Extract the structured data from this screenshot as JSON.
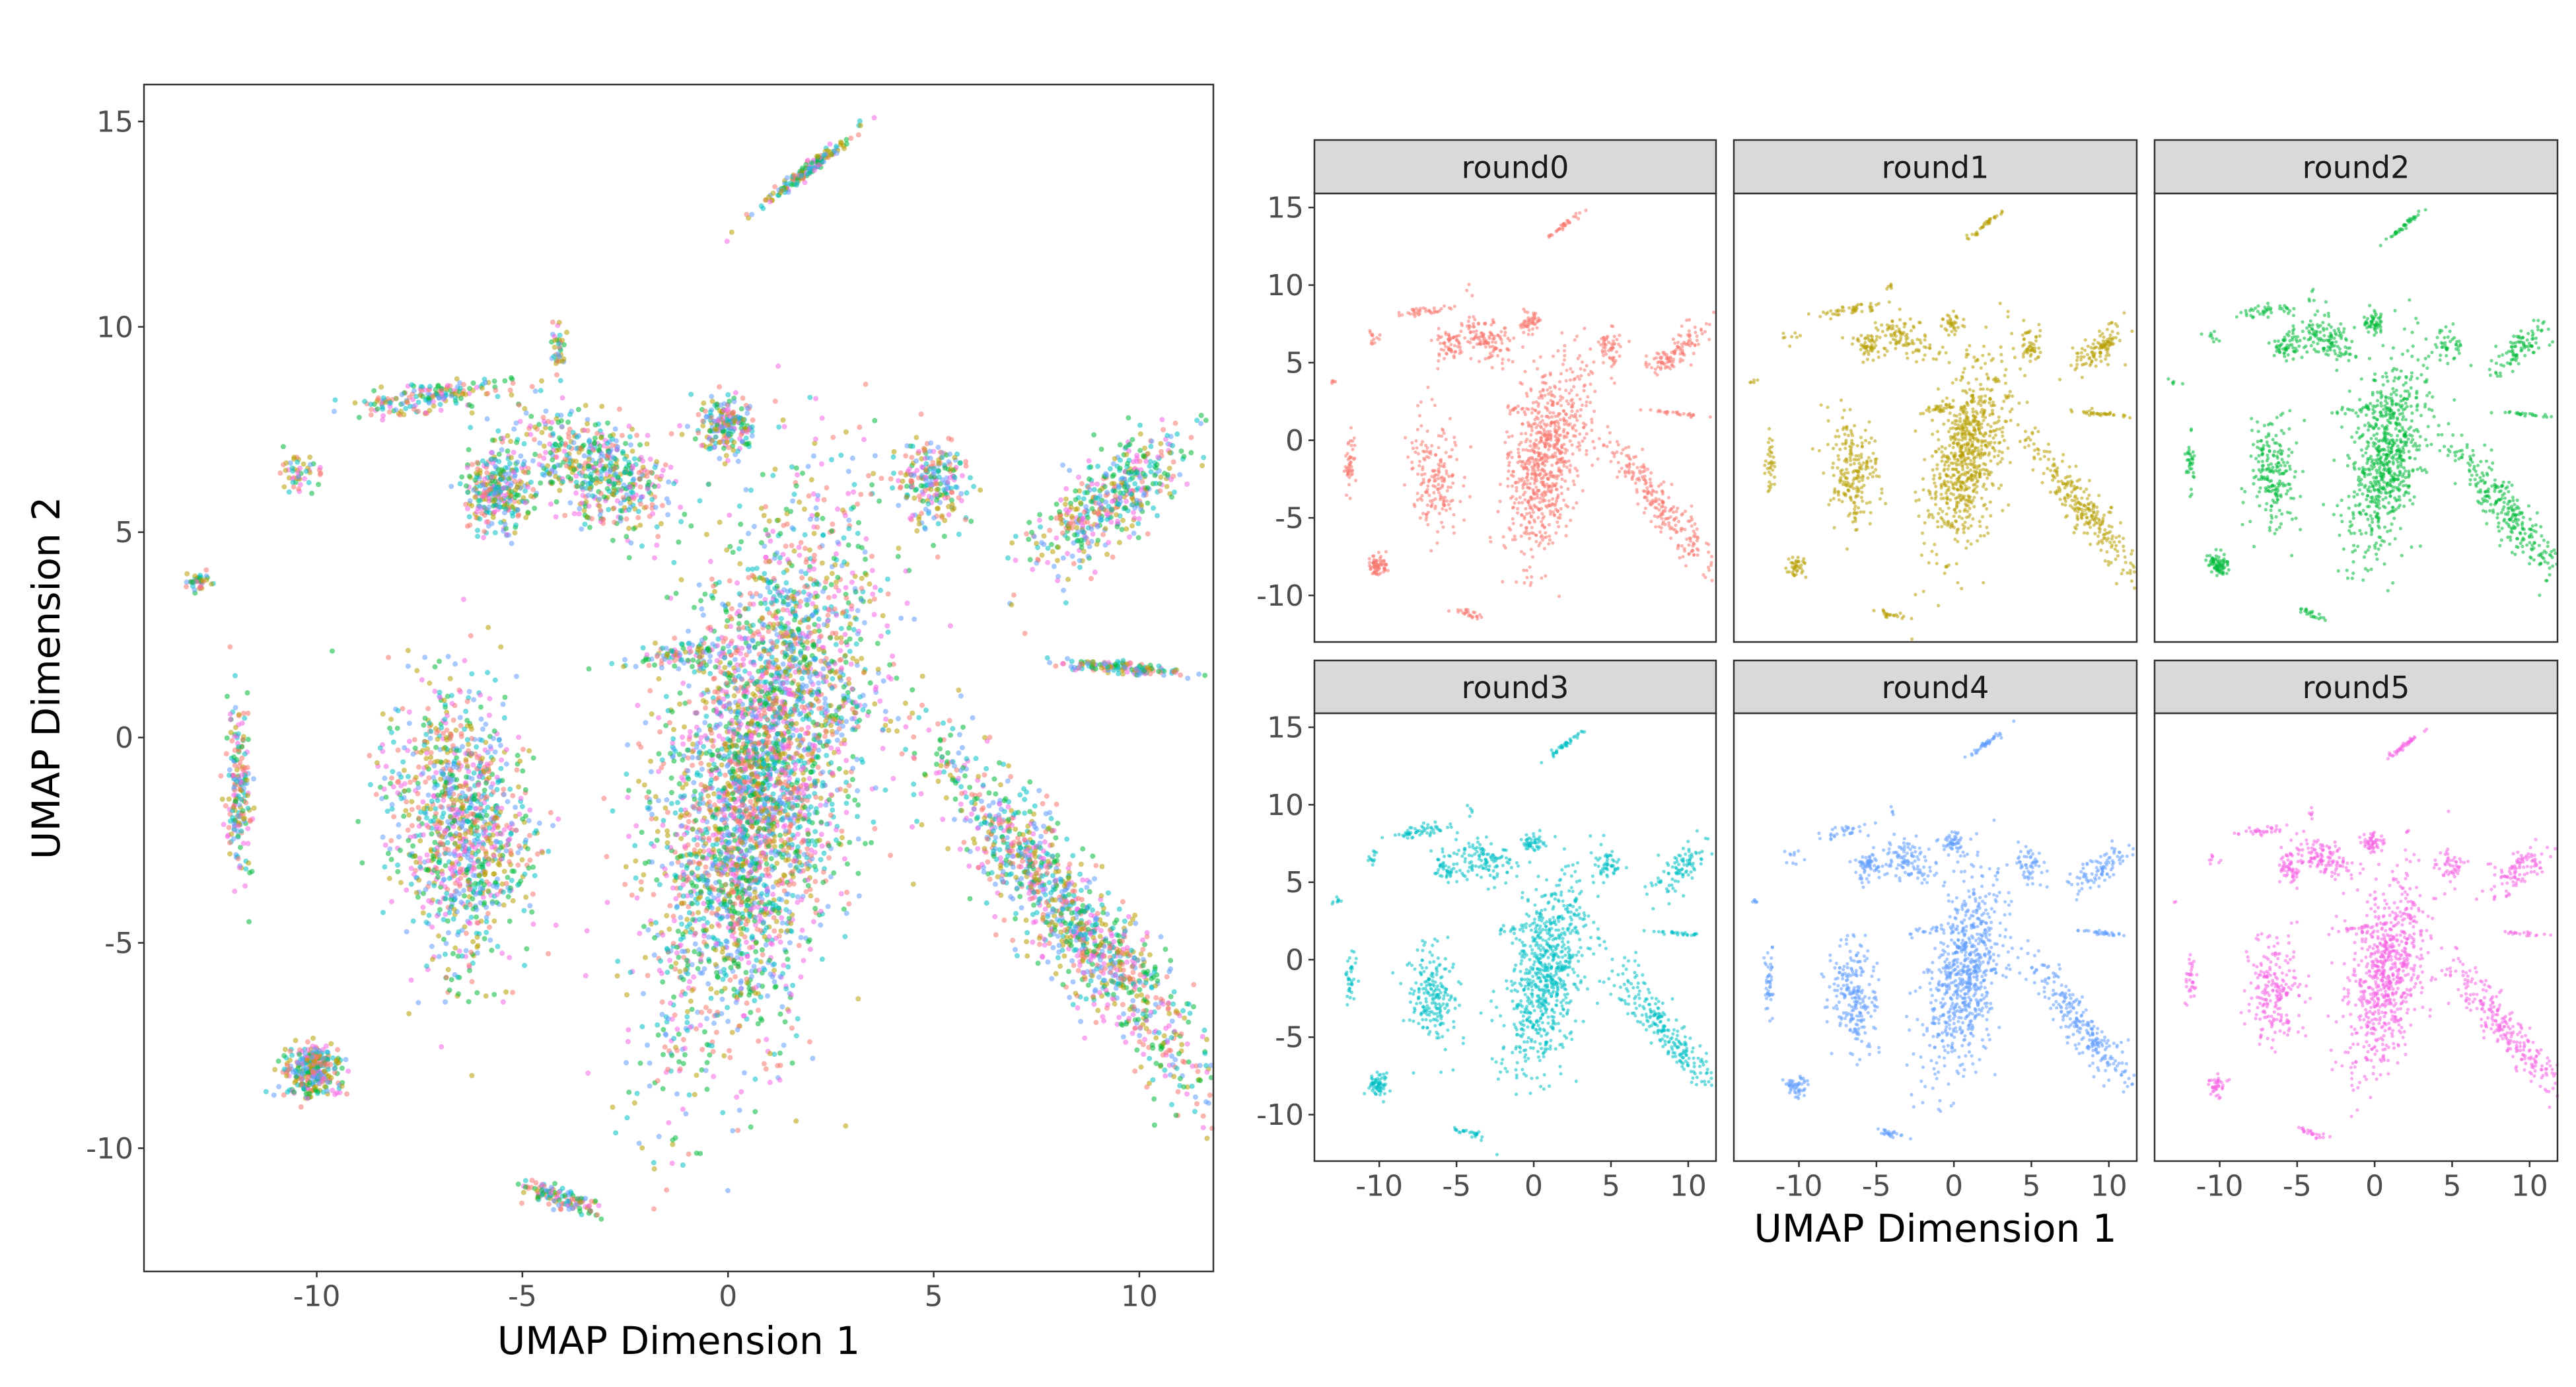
{
  "chart_data": [
    {
      "type": "scatter",
      "panel": "combined",
      "xlabel": "UMAP Dimension 1",
      "ylabel": "UMAP Dimension 2",
      "xlim": [
        -14.2,
        11.8
      ],
      "ylim": [
        -13.0,
        15.9
      ],
      "xticks": [
        -10,
        -5,
        0,
        5,
        10
      ],
      "yticks": [
        -10,
        -5,
        0,
        5,
        10,
        15
      ],
      "xtick_labels": [
        "-10",
        "-5",
        "0",
        "5",
        "10"
      ],
      "ytick_labels": [
        "-10",
        "-5",
        "0",
        "5",
        "10",
        "15"
      ],
      "grid": false,
      "legend": "none",
      "series_colors": [
        "#F8766D",
        "#B79F00",
        "#00BA38",
        "#00BFC4",
        "#619CFF",
        "#F564E3"
      ]
    },
    {
      "type": "scatter",
      "panel": "faceted",
      "xlabel": "UMAP Dimension 1",
      "ylabel": "",
      "xlim": [
        -14.2,
        11.8
      ],
      "ylim": [
        -13.0,
        15.9
      ],
      "xticks": [
        -10,
        -5,
        0,
        5,
        10
      ],
      "yticks": [
        -10,
        -5,
        0,
        5,
        10,
        15
      ],
      "xtick_labels": [
        "-10",
        "-5",
        "0",
        "5",
        "10"
      ],
      "ytick_labels": [
        "-10",
        "-5",
        "0",
        "5",
        "10",
        "15"
      ],
      "grid": false,
      "facets": [
        {
          "name": "round0",
          "color": "#F8766D"
        },
        {
          "name": "round1",
          "color": "#B79F00"
        },
        {
          "name": "round2",
          "color": "#00BA38"
        },
        {
          "name": "round3",
          "color": "#00BFC4"
        },
        {
          "name": "round4",
          "color": "#619CFF"
        },
        {
          "name": "round5",
          "color": "#F564E3"
        }
      ],
      "clusters": [
        {
          "cx": 0.8,
          "cy": -1.0,
          "sx": 1.1,
          "sy": 3.2,
          "rot": -12,
          "weight": 0.3
        },
        {
          "cx": 8.3,
          "cy": -4.3,
          "sx": 0.55,
          "sy": 2.9,
          "rot": 38,
          "weight": 0.11
        },
        {
          "cx": -6.5,
          "cy": -2.2,
          "sx": 0.8,
          "sy": 1.7,
          "rot": 5,
          "weight": 0.09
        },
        {
          "cx": -3.2,
          "cy": 6.5,
          "sx": 1.1,
          "sy": 0.6,
          "rot": -25,
          "weight": 0.05
        },
        {
          "cx": -5.6,
          "cy": 6.0,
          "sx": 0.4,
          "sy": 0.5,
          "rot": 0,
          "weight": 0.025
        },
        {
          "cx": -7.2,
          "cy": 8.3,
          "sx": 0.9,
          "sy": 0.18,
          "rot": 8,
          "weight": 0.015
        },
        {
          "cx": -0.1,
          "cy": 7.6,
          "sx": 0.35,
          "sy": 0.35,
          "rot": 0,
          "weight": 0.02
        },
        {
          "cx": 9.3,
          "cy": 5.8,
          "sx": 1.2,
          "sy": 0.45,
          "rot": 40,
          "weight": 0.04
        },
        {
          "cx": 4.9,
          "cy": 6.1,
          "sx": 0.45,
          "sy": 0.55,
          "rot": 20,
          "weight": 0.02
        },
        {
          "cx": 1.9,
          "cy": 13.8,
          "sx": 0.8,
          "sy": 0.08,
          "rot": 38,
          "weight": 0.015
        },
        {
          "cx": -10.1,
          "cy": -8.1,
          "sx": 0.35,
          "sy": 0.35,
          "rot": 0,
          "weight": 0.025
        },
        {
          "cx": -11.9,
          "cy": -1.3,
          "sx": 0.15,
          "sy": 1.0,
          "rot": 0,
          "weight": 0.015
        },
        {
          "cx": -4.1,
          "cy": -11.2,
          "sx": 0.55,
          "sy": 0.12,
          "rot": -18,
          "weight": 0.01
        },
        {
          "cx": 9.5,
          "cy": 1.7,
          "sx": 0.9,
          "sy": 0.07,
          "rot": -5,
          "weight": 0.012
        },
        {
          "cx": -1.0,
          "cy": 2.0,
          "sx": 0.8,
          "sy": 0.15,
          "rot": 5,
          "weight": 0.01
        },
        {
          "cx": -12.9,
          "cy": 3.8,
          "sx": 0.15,
          "sy": 0.1,
          "rot": 0,
          "weight": 0.003
        },
        {
          "cx": -10.4,
          "cy": 6.6,
          "sx": 0.25,
          "sy": 0.25,
          "rot": 40,
          "weight": 0.004
        },
        {
          "cx": -4.1,
          "cy": 9.5,
          "sx": 0.1,
          "sy": 0.3,
          "rot": 0,
          "weight": 0.003
        }
      ]
    }
  ]
}
